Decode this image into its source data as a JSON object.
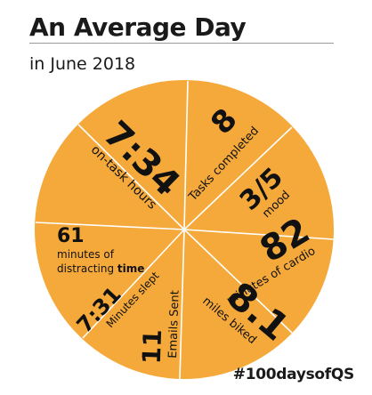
{
  "header": {
    "title": "An Average Day",
    "subtitle": "in June 2018"
  },
  "footer": {
    "hashtag": "#100daysofQS"
  },
  "colors": {
    "wheel_fill": "#f5a93a",
    "divider": "#ffffff",
    "text": "#1a1a1a"
  },
  "stats": [
    {
      "key": "on_task_hours",
      "value": "7:34",
      "label": "on-task hours"
    },
    {
      "key": "tasks_completed",
      "value": "8",
      "label": "Tasks completed"
    },
    {
      "key": "mood",
      "value": "3/5",
      "label": "mood"
    },
    {
      "key": "cardio",
      "value": "82",
      "label": "minutes of cardio"
    },
    {
      "key": "miles_biked",
      "value": "8.1",
      "label": "miles biked"
    },
    {
      "key": "emails_sent",
      "value": "11",
      "label": "Emails Sent"
    },
    {
      "key": "minutes_slept",
      "value": "7:31",
      "label": "Minutes slept"
    },
    {
      "key": "distracting",
      "value": "61",
      "label_line1": "minutes of",
      "label_line2_plain": "distracting ",
      "label_line2_bold": "time"
    }
  ]
}
